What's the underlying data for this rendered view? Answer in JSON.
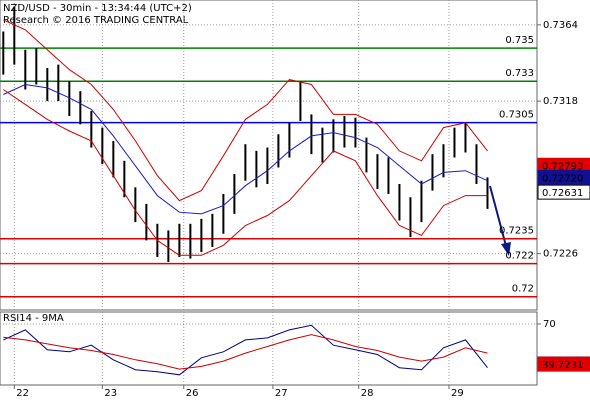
{
  "chart_data": [
    {
      "type": "ohlc",
      "title": "NZD/USD - 30min - 13:34:44 (UTC+2)",
      "subtitle": "Research © 2016 TRADING CENTRAL",
      "xlim": [
        -0.3,
        48.5
      ],
      "ylim": [
        0.7192,
        0.7379
      ],
      "yticks": [
        0.7226,
        0.7318,
        0.7364
      ],
      "grid": true,
      "bars": {
        "color": "#000000",
        "x": [
          0,
          1,
          2,
          3,
          4,
          5,
          6,
          7,
          8,
          9,
          10,
          11,
          12,
          13,
          14,
          15,
          16,
          17,
          18,
          19,
          20,
          21,
          22,
          23,
          24,
          25,
          26,
          27,
          28,
          29,
          30,
          31,
          32,
          33,
          34,
          35,
          36,
          37,
          38,
          39,
          40,
          41,
          42,
          43,
          44
        ],
        "high": [
          0.736,
          0.7375,
          0.7349,
          0.735,
          0.7338,
          0.734,
          0.733,
          0.7324,
          0.7312,
          0.7302,
          0.7294,
          0.7282,
          0.7266,
          0.7256,
          0.7244,
          0.724,
          0.7244,
          0.7244,
          0.7247,
          0.725,
          0.7262,
          0.7274,
          0.7292,
          0.7288,
          0.729,
          0.7298,
          0.7305,
          0.733,
          0.731,
          0.7302,
          0.7307,
          0.7309,
          0.7308,
          0.7296,
          0.7286,
          0.7284,
          0.7268,
          0.726,
          0.727,
          0.7286,
          0.7292,
          0.7302,
          0.7305,
          0.7292,
          0.7272
        ],
        "low": [
          0.7334,
          0.734,
          0.7325,
          0.7328,
          0.7318,
          0.7318,
          0.7309,
          0.7304,
          0.729,
          0.728,
          0.7272,
          0.726,
          0.7245,
          0.7234,
          0.7224,
          0.7221,
          0.7224,
          0.7223,
          0.7227,
          0.723,
          0.7238,
          0.725,
          0.727,
          0.7266,
          0.7268,
          0.7278,
          0.7284,
          0.7306,
          0.7286,
          0.7281,
          0.7287,
          0.729,
          0.729,
          0.7275,
          0.7265,
          0.7262,
          0.7246,
          0.7236,
          0.7245,
          0.7264,
          0.7272,
          0.7284,
          0.7287,
          0.7268,
          0.7253
        ]
      },
      "line_x": [
        0,
        2,
        4,
        6,
        8,
        10,
        12,
        14,
        16,
        18,
        20,
        22,
        24,
        26,
        28,
        30,
        32,
        34,
        36,
        38,
        40,
        42,
        44
      ],
      "lines": [
        {
          "color": "#1a1acc",
          "values": [
            0.7322,
            0.7328,
            0.7326,
            0.732,
            0.7313,
            0.7297,
            0.7279,
            0.7261,
            0.7251,
            0.725,
            0.7255,
            0.7267,
            0.7276,
            0.7288,
            0.7297,
            0.7299,
            0.7296,
            0.729,
            0.7279,
            0.7268,
            0.7275,
            0.7276,
            0.727
          ]
        },
        {
          "color": "#cc0000",
          "values": [
            0.7367,
            0.7361,
            0.7349,
            0.7337,
            0.7328,
            0.7313,
            0.7294,
            0.7273,
            0.7258,
            0.7264,
            0.7285,
            0.7307,
            0.7316,
            0.7331,
            0.7328,
            0.731,
            0.731,
            0.7304,
            0.7288,
            0.7282,
            0.7302,
            0.7305,
            0.7288
          ]
        },
        {
          "color": "#cc0000",
          "values": [
            0.7325,
            0.7316,
            0.7307,
            0.73,
            0.7294,
            0.7273,
            0.7252,
            0.7234,
            0.7225,
            0.7225,
            0.7231,
            0.7243,
            0.7249,
            0.7258,
            0.7273,
            0.7288,
            0.7282,
            0.7261,
            0.7243,
            0.7237,
            0.7255,
            0.7261,
            0.7261
          ]
        }
      ],
      "levels": [
        {
          "value": 0.735,
          "color": "#008000"
        },
        {
          "value": 0.733,
          "color": "#008000"
        },
        {
          "value": 0.7305,
          "color": "#0000ff"
        },
        {
          "value": 0.7235,
          "color": "#dd0000"
        },
        {
          "value": 0.722,
          "color": "#dd0000"
        },
        {
          "value": 0.72,
          "color": "#dd0000"
        }
      ],
      "markers": [
        {
          "value": 0.72793,
          "color": "#e00000"
        },
        {
          "value": {
            "value": 0.7272,
            "label": "0.72720"
          },
          "color": "#101090"
        },
        {
          "value": 0.72631,
          "color": "#ffffff"
        }
      ]
    },
    {
      "type": "line",
      "title": "RSI14 - 9MA",
      "xlim": [
        -0.3,
        48.5
      ],
      "ylim": [
        24,
        79
      ],
      "yticks": [
        70
      ],
      "xticks": [
        {
          "value": 1,
          "label": "22"
        },
        {
          "value": 9,
          "label": "23"
        },
        {
          "value": 16.4,
          "label": "26"
        },
        {
          "value": 24.5,
          "label": "27"
        },
        {
          "value": 32.3,
          "label": "28"
        },
        {
          "value": 40.5,
          "label": "29"
        }
      ],
      "x": [
        0,
        2,
        4,
        6,
        8,
        10,
        12,
        14,
        16,
        18,
        20,
        22,
        24,
        26,
        28,
        30,
        32,
        34,
        36,
        38,
        40,
        42,
        44
      ],
      "series": [
        {
          "color": "#000080",
          "values": [
            58,
            65.5,
            50.5,
            49,
            54,
            43,
            35.5,
            34,
            31.7,
            44.5,
            49,
            58,
            59.5,
            65.5,
            69,
            54,
            50.5,
            47,
            37,
            35.5,
            52,
            58,
            37
          ]
        },
        {
          "color": "#cc0000",
          "values": [
            60,
            58,
            55,
            52,
            50,
            47,
            43,
            40,
            36,
            38,
            42,
            48,
            53,
            58,
            62,
            58,
            53,
            50,
            45,
            42,
            45,
            52,
            48
          ]
        }
      ],
      "markers": [
        {
          "value": 39.8463,
          "color": "#101090"
        },
        {
          "value": 39.7231,
          "color": "#e00000"
        }
      ]
    }
  ]
}
